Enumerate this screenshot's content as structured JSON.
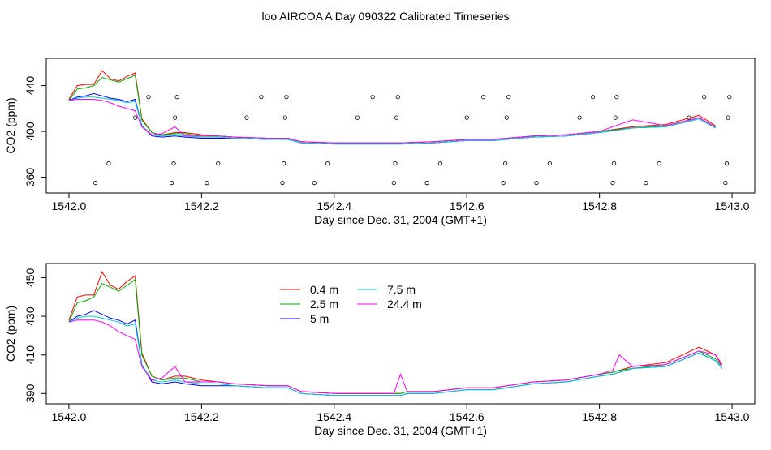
{
  "title": "loo AIRCOA A  Day 090322  Calibrated Timeseries",
  "chart_data": [
    {
      "type": "line",
      "subtype": "line+points",
      "xlabel": "Day since Dec. 31, 2004 (GMT+1)",
      "ylabel": "CO2 (ppm)",
      "xlim": [
        1542.0,
        1543.0
      ],
      "ylim": [
        350,
        460
      ],
      "xticks": [
        1542.0,
        1542.2,
        1542.4,
        1542.6,
        1542.8,
        1543.0
      ],
      "xtick_labels": [
        "1542.0",
        "1542.2",
        "1542.4",
        "1542.6",
        "1542.8",
        "1543.0"
      ],
      "yticks": [
        360,
        400,
        440
      ],
      "ytick_labels": [
        "360",
        "400",
        "440"
      ],
      "x": [
        1542.0,
        1542.0125,
        1542.025,
        1542.0375,
        1542.05,
        1542.0625,
        1542.075,
        1542.0875,
        1542.1,
        1542.11,
        1542.125,
        1542.14,
        1542.16,
        1542.175,
        1542.2,
        1542.225,
        1542.25,
        1542.3,
        1542.33,
        1542.35,
        1542.4,
        1542.45,
        1542.5,
        1542.55,
        1542.6,
        1542.64,
        1542.7,
        1542.75,
        1542.8,
        1542.85,
        1542.9,
        1542.95,
        1542.975
      ],
      "series": [
        {
          "color": "#ff0000",
          "values": [
            428,
            440,
            441,
            441,
            453,
            446,
            444,
            448,
            451,
            411,
            399,
            397,
            399,
            399,
            397,
            396,
            395,
            394,
            394,
            391,
            390,
            390,
            390,
            391,
            393,
            393,
            396,
            397,
            400,
            404,
            406,
            414,
            405
          ]
        },
        {
          "color": "#00aa00",
          "values": [
            427,
            437,
            438,
            440,
            447,
            445,
            443,
            446,
            449,
            410,
            399,
            397,
            398,
            398,
            396,
            396,
            395,
            394,
            394,
            391,
            390,
            390,
            390,
            391,
            393,
            393,
            396,
            397,
            400,
            403,
            405,
            412,
            404
          ]
        },
        {
          "color": "#0000ff",
          "values": [
            427,
            430,
            431,
            433,
            431,
            429,
            428,
            426,
            428,
            405,
            396,
            395,
            396,
            395,
            394,
            394,
            394,
            393,
            393,
            390,
            389,
            389,
            389,
            390,
            392,
            392,
            395,
            396,
            399,
            403,
            404,
            411,
            403
          ]
        },
        {
          "color": "#00cccc",
          "values": [
            427,
            429,
            430,
            430,
            429,
            428,
            427,
            425,
            426,
            405,
            397,
            396,
            397,
            396,
            395,
            395,
            394,
            393,
            393,
            390,
            389,
            389,
            389,
            390,
            392,
            392,
            395,
            396,
            399,
            403,
            404,
            411,
            403
          ]
        },
        {
          "color": "#ff00ff",
          "values": [
            427,
            428,
            428,
            428,
            427,
            425,
            422,
            420,
            418,
            404,
            397,
            398,
            404,
            396,
            396,
            396,
            395,
            394,
            394,
            391,
            390,
            390,
            390,
            391,
            393,
            393,
            396,
            397,
            400,
            410,
            405,
            412,
            404
          ]
        }
      ],
      "points": {
        "x": [
          1542.04,
          1542.06,
          1542.1,
          1542.12,
          1542.155,
          1542.158,
          1542.16,
          1542.163,
          1542.208,
          1542.225,
          1542.268,
          1542.29,
          1542.322,
          1542.324,
          1542.326,
          1542.328,
          1542.37,
          1542.39,
          1542.435,
          1542.458,
          1542.49,
          1542.492,
          1542.494,
          1542.496,
          1542.54,
          1542.56,
          1542.6,
          1542.625,
          1542.655,
          1542.658,
          1542.66,
          1542.663,
          1542.705,
          1542.725,
          1542.77,
          1542.79,
          1542.82,
          1542.822,
          1542.824,
          1542.826,
          1542.87,
          1542.89,
          1542.935,
          1542.958,
          1542.99,
          1542.992,
          1542.994,
          1542.996
        ],
        "y": [
          355,
          372,
          412,
          430,
          355,
          372,
          412,
          430,
          355,
          372,
          412,
          430,
          355,
          372,
          412,
          430,
          355,
          372,
          412,
          430,
          355,
          372,
          412,
          430,
          355,
          372,
          412,
          430,
          355,
          372,
          412,
          430,
          355,
          372,
          412,
          430,
          355,
          372,
          412,
          430,
          355,
          372,
          412,
          430,
          355,
          372,
          412,
          430
        ]
      }
    },
    {
      "type": "line",
      "xlabel": "Day since Dec. 31, 2004 (GMT+1)",
      "ylabel": "CO2 (ppm)",
      "xlim": [
        1542.0,
        1543.0
      ],
      "ylim": [
        387,
        455
      ],
      "xticks": [
        1542.0,
        1542.2,
        1542.4,
        1542.6,
        1542.8,
        1543.0
      ],
      "xtick_labels": [
        "1542.0",
        "1542.2",
        "1542.4",
        "1542.6",
        "1542.8",
        "1543.0"
      ],
      "yticks": [
        390,
        410,
        430,
        450
      ],
      "ytick_labels": [
        "390",
        "410",
        "430",
        "450"
      ],
      "legend": {
        "position": "top-center",
        "entries": [
          {
            "label": "0.4 m",
            "color": "#ff0000"
          },
          {
            "label": "2.5 m",
            "color": "#00aa00"
          },
          {
            "label": "5 m",
            "color": "#0000ff"
          },
          {
            "label": "7.5 m",
            "color": "#00cccc"
          },
          {
            "label": "24.4 m",
            "color": "#ff00ff"
          }
        ]
      },
      "x": [
        1542.0,
        1542.0125,
        1542.025,
        1542.0375,
        1542.05,
        1542.0625,
        1542.075,
        1542.0875,
        1542.1,
        1542.11,
        1542.125,
        1542.14,
        1542.16,
        1542.175,
        1542.2,
        1542.225,
        1542.25,
        1542.3,
        1542.33,
        1542.35,
        1542.4,
        1542.45,
        1542.49,
        1542.5,
        1542.51,
        1542.55,
        1542.6,
        1542.64,
        1542.7,
        1542.75,
        1542.8,
        1542.82,
        1542.83,
        1542.85,
        1542.9,
        1542.95,
        1542.975,
        1542.985
      ],
      "series": [
        {
          "name": "0.4 m",
          "color": "#ff0000",
          "values": [
            428,
            440,
            441,
            441,
            453,
            446,
            444,
            448,
            451,
            411,
            399,
            397,
            399,
            399,
            397,
            396,
            395,
            394,
            394,
            391,
            390,
            390,
            390,
            390,
            391,
            391,
            393,
            393,
            396,
            397,
            400,
            401,
            402,
            404,
            406,
            414,
            410,
            405
          ]
        },
        {
          "name": "2.5 m",
          "color": "#00aa00",
          "values": [
            427,
            437,
            438,
            440,
            447,
            445,
            443,
            446,
            449,
            410,
            399,
            397,
            398,
            398,
            396,
            396,
            395,
            394,
            394,
            391,
            390,
            390,
            390,
            390,
            391,
            391,
            393,
            393,
            396,
            397,
            400,
            401,
            402,
            403,
            405,
            412,
            408,
            404
          ]
        },
        {
          "name": "5 m",
          "color": "#0000ff",
          "values": [
            427,
            430,
            431,
            433,
            431,
            429,
            428,
            426,
            428,
            405,
            396,
            395,
            396,
            395,
            394,
            394,
            394,
            393,
            393,
            390,
            389,
            389,
            389,
            389,
            390,
            390,
            392,
            392,
            395,
            396,
            399,
            400,
            401,
            403,
            404,
            411,
            407,
            403
          ]
        },
        {
          "name": "7.5 m",
          "color": "#00cccc",
          "values": [
            427,
            429,
            430,
            430,
            429,
            428,
            427,
            425,
            426,
            405,
            397,
            396,
            397,
            396,
            395,
            395,
            394,
            393,
            393,
            390,
            389,
            389,
            389,
            389,
            390,
            390,
            392,
            392,
            395,
            396,
            399,
            400,
            401,
            403,
            404,
            411,
            407,
            403
          ]
        },
        {
          "name": "24.4 m",
          "color": "#ff00ff",
          "values": [
            427,
            428,
            428,
            428,
            427,
            425,
            422,
            420,
            418,
            404,
            397,
            398,
            404,
            396,
            396,
            396,
            395,
            394,
            394,
            391,
            390,
            390,
            390,
            400,
            391,
            391,
            393,
            393,
            396,
            397,
            400,
            402,
            410,
            404,
            405,
            412,
            410,
            404
          ]
        }
      ]
    }
  ]
}
